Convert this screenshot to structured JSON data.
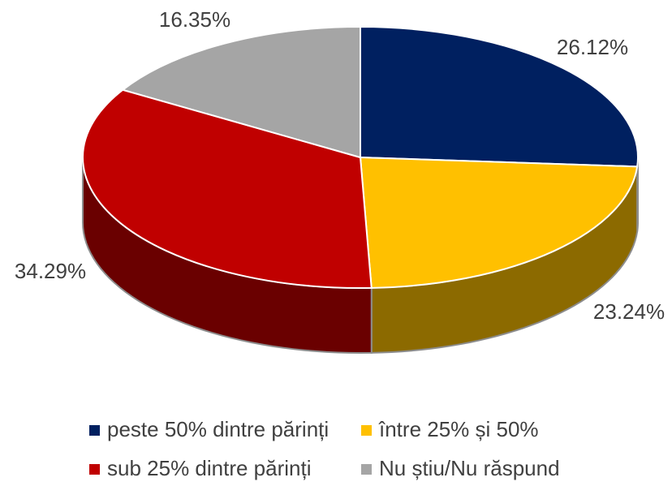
{
  "chart_data": {
    "type": "pie3d",
    "categories": [
      "peste 50% dintre părinți",
      "între 25% și 50%",
      "sub 25% dintre părinți",
      "Nu știu/Nu răspund"
    ],
    "values": [
      26.12,
      23.24,
      34.29,
      16.35
    ],
    "value_labels": [
      "26.12%",
      "23.24%",
      "34.29%",
      "16.35%"
    ],
    "colors": [
      "#002060",
      "#ffc000",
      "#c00000",
      "#a5a5a5"
    ]
  }
}
